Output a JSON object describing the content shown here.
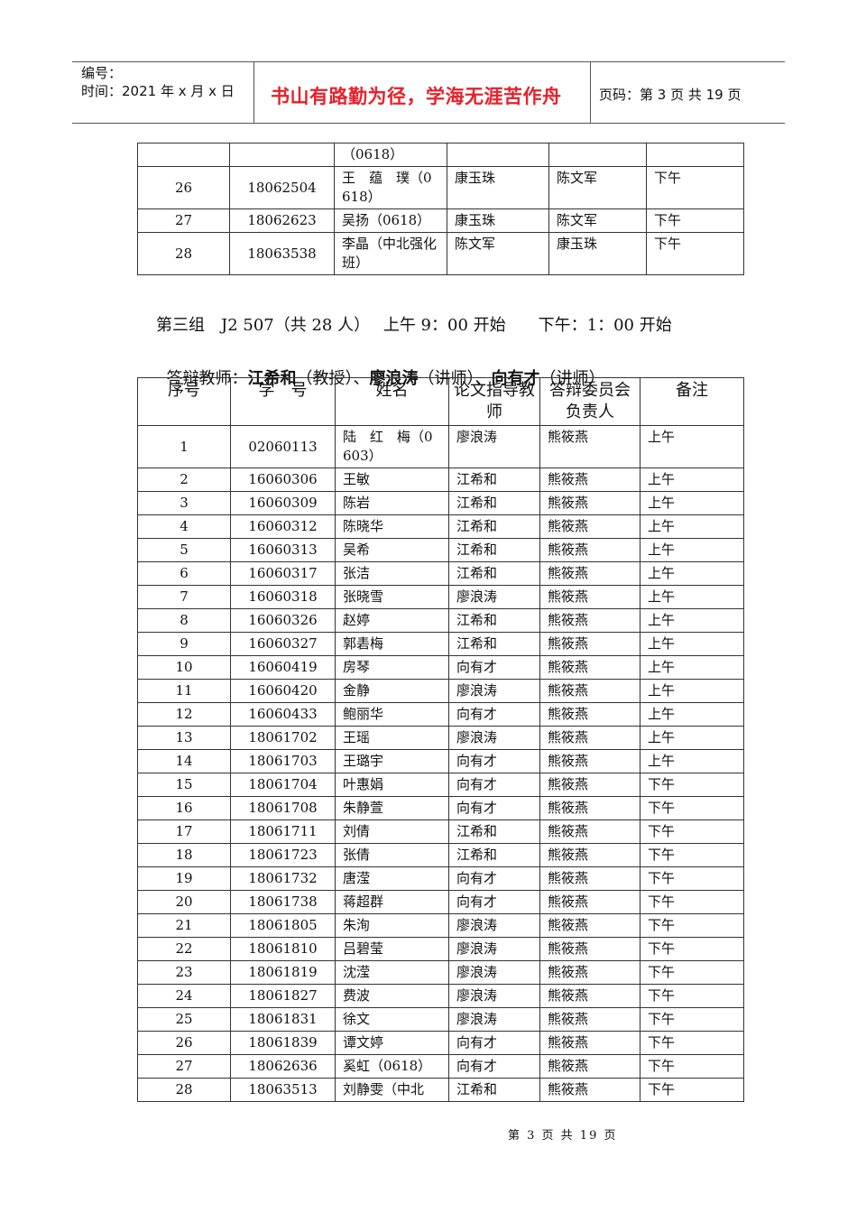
{
  "header": {
    "serial_label": "编号：",
    "date_label": "时间：2021 年 x 月 x 日",
    "motto": "书山有路勤为径，学海无涯苦作舟",
    "page_info": "页码：第 3 页  共 19 页",
    "motto_color": "#e8202a"
  },
  "table_continued": {
    "rows": [
      {
        "no": "",
        "id": "",
        "name": "（0618）",
        "advisor": "",
        "chair": "",
        "note": ""
      },
      {
        "no": "26",
        "id": "18062504",
        "name": "王　蕴　璞（0618）",
        "advisor": "康玉珠",
        "chair": "陈文军",
        "note": "下午"
      },
      {
        "no": "27",
        "id": "18062623",
        "name": "吴扬（0618）",
        "advisor": "康玉珠",
        "chair": "陈文军",
        "note": "下午"
      },
      {
        "no": "28",
        "id": "18063538",
        "name": "李晶（中北强化班）",
        "advisor": "陈文军",
        "chair": "康玉珠",
        "note": "下午"
      }
    ]
  },
  "group": {
    "line1": "第三组　J2 507（共 28 人）　 上午 9：00 开始　　下午：1：00 开始",
    "teachers_label": "答辩教师：",
    "teachers": [
      {
        "name": "江希和",
        "title": "（教授）"
      },
      {
        "name": "廖浪涛",
        "title": "（讲师）"
      },
      {
        "name": "向有才",
        "title": "（讲师）"
      }
    ],
    "separator": "、"
  },
  "table": {
    "headers": [
      "序号",
      "学　号",
      "姓名",
      "论文指导教师",
      "答辩委员会负责人",
      "备注"
    ],
    "rows": [
      {
        "no": "1",
        "id": "02060113",
        "name": "陆　红　梅（0603）",
        "advisor": "廖浪涛",
        "chair": "熊筱燕",
        "note": "上午"
      },
      {
        "no": "2",
        "id": "16060306",
        "name": "王敏",
        "advisor": "江希和",
        "chair": "熊筱燕",
        "note": "上午"
      },
      {
        "no": "3",
        "id": "16060309",
        "name": "陈岩",
        "advisor": "江希和",
        "chair": "熊筱燕",
        "note": "上午"
      },
      {
        "no": "4",
        "id": "16060312",
        "name": "陈晓华",
        "advisor": "江希和",
        "chair": "熊筱燕",
        "note": "上午"
      },
      {
        "no": "5",
        "id": "16060313",
        "name": "吴希",
        "advisor": "江希和",
        "chair": "熊筱燕",
        "note": "上午"
      },
      {
        "no": "6",
        "id": "16060317",
        "name": "张洁",
        "advisor": "江希和",
        "chair": "熊筱燕",
        "note": "上午"
      },
      {
        "no": "7",
        "id": "16060318",
        "name": "张晓雪",
        "advisor": "廖浪涛",
        "chair": "熊筱燕",
        "note": "上午"
      },
      {
        "no": "8",
        "id": "16060326",
        "name": "赵婷",
        "advisor": "江希和",
        "chair": "熊筱燕",
        "note": "上午"
      },
      {
        "no": "9",
        "id": "16060327",
        "name": "郭砉梅",
        "advisor": "江希和",
        "chair": "熊筱燕",
        "note": "上午"
      },
      {
        "no": "10",
        "id": "16060419",
        "name": "房琴",
        "advisor": "向有才",
        "chair": "熊筱燕",
        "note": "上午"
      },
      {
        "no": "11",
        "id": "16060420",
        "name": "金静",
        "advisor": "廖浪涛",
        "chair": "熊筱燕",
        "note": "上午"
      },
      {
        "no": "12",
        "id": "16060433",
        "name": "鲍丽华",
        "advisor": "向有才",
        "chair": "熊筱燕",
        "note": "上午"
      },
      {
        "no": "13",
        "id": "18061702",
        "name": "王瑶",
        "advisor": "廖浪涛",
        "chair": "熊筱燕",
        "note": "上午"
      },
      {
        "no": "14",
        "id": "18061703",
        "name": "王璐宇",
        "advisor": "向有才",
        "chair": "熊筱燕",
        "note": "上午"
      },
      {
        "no": "15",
        "id": "18061704",
        "name": "叶惠娟",
        "advisor": "向有才",
        "chair": "熊筱燕",
        "note": "下午"
      },
      {
        "no": "16",
        "id": "18061708",
        "name": "朱静萱",
        "advisor": "向有才",
        "chair": "熊筱燕",
        "note": "下午"
      },
      {
        "no": "17",
        "id": "18061711",
        "name": "刘倩",
        "advisor": "江希和",
        "chair": "熊筱燕",
        "note": "下午"
      },
      {
        "no": "18",
        "id": "18061723",
        "name": "张倩",
        "advisor": "江希和",
        "chair": "熊筱燕",
        "note": "下午"
      },
      {
        "no": "19",
        "id": "18061732",
        "name": "唐滢",
        "advisor": "向有才",
        "chair": "熊筱燕",
        "note": "下午"
      },
      {
        "no": "20",
        "id": "18061738",
        "name": "蒋超群",
        "advisor": "向有才",
        "chair": "熊筱燕",
        "note": "下午"
      },
      {
        "no": "21",
        "id": "18061805",
        "name": "朱洵",
        "advisor": "廖浪涛",
        "chair": "熊筱燕",
        "note": "下午"
      },
      {
        "no": "22",
        "id": "18061810",
        "name": "吕碧莹",
        "advisor": "廖浪涛",
        "chair": "熊筱燕",
        "note": "下午"
      },
      {
        "no": "23",
        "id": "18061819",
        "name": "沈滢",
        "advisor": "廖浪涛",
        "chair": "熊筱燕",
        "note": "下午"
      },
      {
        "no": "24",
        "id": "18061827",
        "name": "费波",
        "advisor": "廖浪涛",
        "chair": "熊筱燕",
        "note": "下午"
      },
      {
        "no": "25",
        "id": "18061831",
        "name": "徐文",
        "advisor": "廖浪涛",
        "chair": "熊筱燕",
        "note": "下午"
      },
      {
        "no": "26",
        "id": "18061839",
        "name": "谭文婷",
        "advisor": "向有才",
        "chair": "熊筱燕",
        "note": "下午"
      },
      {
        "no": "27",
        "id": "18062636",
        "name": "奚虹（0618）",
        "advisor": "向有才",
        "chair": "熊筱燕",
        "note": "下午"
      },
      {
        "no": "28",
        "id": "18063513",
        "name": "刘静雯（中北",
        "advisor": "江希和",
        "chair": "熊筱燕",
        "note": "下午"
      }
    ]
  },
  "footer": {
    "page": "第 3 页 共 19 页"
  }
}
